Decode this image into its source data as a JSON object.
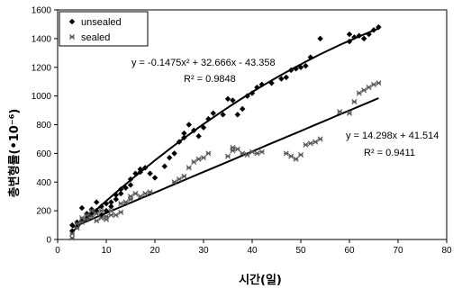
{
  "chart_data": {
    "type": "scatter",
    "xlabel": "시간(일)",
    "ylabel": "총변형률(•10⁻⁶)",
    "xlim": [
      0,
      80
    ],
    "ylim": [
      0,
      1600
    ],
    "x_ticks": [
      "0",
      "10",
      "20",
      "30",
      "40",
      "50",
      "60",
      "70",
      "80"
    ],
    "y_ticks": [
      "0",
      "200",
      "400",
      "600",
      "800",
      "1000",
      "1200",
      "1400",
      "1600"
    ],
    "legend_position": "top-left",
    "grid": false,
    "series": [
      {
        "name": "unsealed",
        "marker": "diamond",
        "color": "#000000",
        "points": [
          [
            3,
            60
          ],
          [
            3,
            100
          ],
          [
            4,
            120
          ],
          [
            4,
            90
          ],
          [
            5,
            130
          ],
          [
            5,
            220
          ],
          [
            6,
            180
          ],
          [
            6,
            150
          ],
          [
            7,
            210
          ],
          [
            7,
            180
          ],
          [
            8,
            260
          ],
          [
            8,
            200
          ],
          [
            9,
            230
          ],
          [
            9,
            170
          ],
          [
            10,
            200
          ],
          [
            10,
            250
          ],
          [
            11,
            260
          ],
          [
            11,
            230
          ],
          [
            12,
            310
          ],
          [
            12,
            280
          ],
          [
            13,
            350
          ],
          [
            13,
            320
          ],
          [
            14,
            360
          ],
          [
            15,
            380
          ],
          [
            15,
            420
          ],
          [
            16,
            460
          ],
          [
            17,
            490
          ],
          [
            17,
            470
          ],
          [
            18,
            500
          ],
          [
            19,
            460
          ],
          [
            20,
            430
          ],
          [
            22,
            510
          ],
          [
            23,
            570
          ],
          [
            24,
            600
          ],
          [
            25,
            680
          ],
          [
            26,
            740
          ],
          [
            26,
            710
          ],
          [
            27,
            800
          ],
          [
            28,
            760
          ],
          [
            29,
            720
          ],
          [
            30,
            780
          ],
          [
            31,
            840
          ],
          [
            32,
            880
          ],
          [
            34,
            870
          ],
          [
            35,
            980
          ],
          [
            36,
            970
          ],
          [
            37,
            870
          ],
          [
            38,
            910
          ],
          [
            39,
            1000
          ],
          [
            40,
            1020
          ],
          [
            41,
            1060
          ],
          [
            42,
            1080
          ],
          [
            44,
            1090
          ],
          [
            46,
            1120
          ],
          [
            47,
            1130
          ],
          [
            48,
            1180
          ],
          [
            49,
            1190
          ],
          [
            50,
            1200
          ],
          [
            51,
            1210
          ],
          [
            52,
            1270
          ],
          [
            54,
            1400
          ],
          [
            60,
            1380
          ],
          [
            60,
            1430
          ],
          [
            61,
            1410
          ],
          [
            62,
            1420
          ],
          [
            63,
            1400
          ],
          [
            64,
            1430
          ],
          [
            65,
            1460
          ],
          [
            66,
            1480
          ]
        ]
      },
      {
        "name": "sealed",
        "marker": "cross",
        "color": "#555555",
        "points": [
          [
            3,
            10
          ],
          [
            3,
            40
          ],
          [
            4,
            80
          ],
          [
            4,
            110
          ],
          [
            5,
            120
          ],
          [
            5,
            150
          ],
          [
            6,
            140
          ],
          [
            6,
            170
          ],
          [
            7,
            160
          ],
          [
            7,
            200
          ],
          [
            8,
            180
          ],
          [
            8,
            130
          ],
          [
            9,
            150
          ],
          [
            9,
            200
          ],
          [
            10,
            140
          ],
          [
            10,
            160
          ],
          [
            11,
            170
          ],
          [
            11,
            200
          ],
          [
            12,
            170
          ],
          [
            13,
            190
          ],
          [
            13,
            250
          ],
          [
            14,
            260
          ],
          [
            15,
            300
          ],
          [
            15,
            280
          ],
          [
            16,
            320
          ],
          [
            17,
            300
          ],
          [
            18,
            320
          ],
          [
            19,
            330
          ],
          [
            24,
            400
          ],
          [
            25,
            420
          ],
          [
            26,
            440
          ],
          [
            27,
            500
          ],
          [
            28,
            540
          ],
          [
            29,
            560
          ],
          [
            30,
            570
          ],
          [
            31,
            600
          ],
          [
            35,
            580
          ],
          [
            36,
            640
          ],
          [
            36,
            620
          ],
          [
            37,
            630
          ],
          [
            38,
            600
          ],
          [
            39,
            590
          ],
          [
            40,
            610
          ],
          [
            41,
            600
          ],
          [
            42,
            610
          ],
          [
            47,
            600
          ],
          [
            48,
            580
          ],
          [
            49,
            560
          ],
          [
            50,
            590
          ],
          [
            51,
            660
          ],
          [
            52,
            670
          ],
          [
            53,
            680
          ],
          [
            54,
            700
          ],
          [
            58,
            890
          ],
          [
            60,
            880
          ],
          [
            61,
            960
          ],
          [
            62,
            1020
          ],
          [
            63,
            1040
          ],
          [
            64,
            1060
          ],
          [
            65,
            1080
          ],
          [
            66,
            1090
          ]
        ]
      }
    ],
    "trendlines": [
      {
        "series": "unsealed",
        "kind": "polynomial",
        "coefficients": [
          -0.1475,
          32.666,
          -43.358
        ],
        "x_range": [
          3,
          66
        ],
        "equation": "y = -0.1475x² + 32.666x - 43.358",
        "r2": "R² = 0.9848"
      },
      {
        "series": "sealed",
        "kind": "linear",
        "coefficients": [
          14.298,
          41.514
        ],
        "x_range": [
          3,
          66
        ],
        "equation": "y = 14.298x + 41.514",
        "r2": "R² = 0.9411"
      }
    ]
  }
}
